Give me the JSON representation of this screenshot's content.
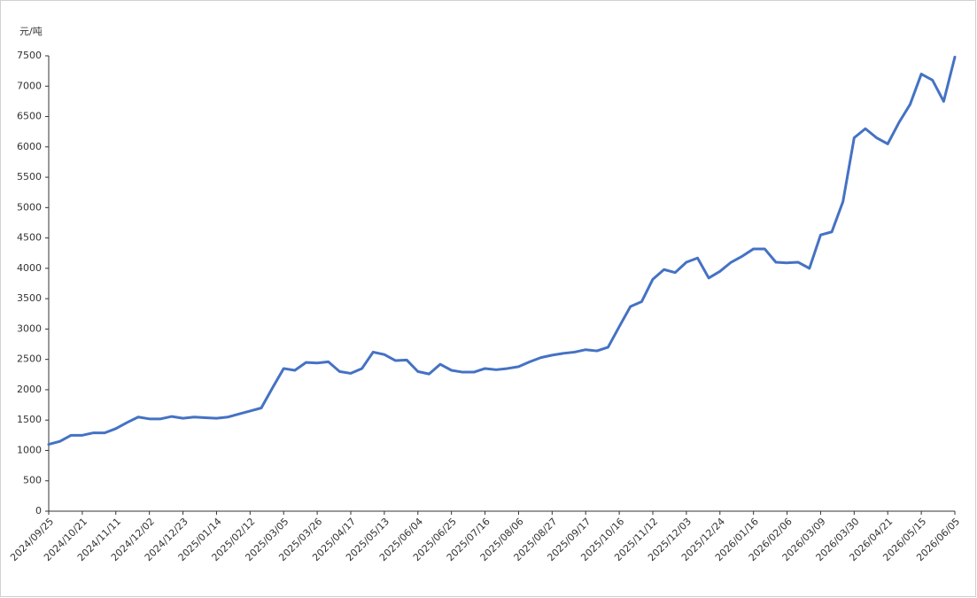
{
  "chart_data": {
    "type": "line",
    "y_axis_label": "元/吨",
    "color": "#4472c4",
    "categories": [
      "2024/09/25",
      null,
      null,
      "2024/10/21",
      null,
      null,
      "2024/11/11",
      null,
      null,
      "2024/12/02",
      null,
      null,
      "2024/12/23",
      null,
      null,
      "2025/01/14",
      null,
      null,
      "2025/02/12",
      null,
      null,
      "2025/03/05",
      null,
      null,
      "2025/03/26",
      null,
      null,
      "2025/04/17",
      null,
      null,
      "2025/05/13",
      null,
      null,
      "2025/06/04",
      null,
      null,
      "2025/06/25",
      null,
      null,
      "2025/07/16",
      null,
      null,
      "2025/08/06",
      null,
      null,
      "2025/08/27",
      null,
      null,
      "2025/09/17",
      null,
      null,
      "2025/10/16",
      null,
      null,
      "2025/11/12",
      null,
      null,
      "2025/12/03",
      null,
      null,
      "2025/12/24",
      null,
      null,
      "2026/01/16",
      null,
      null,
      "2026/02/06",
      null,
      null,
      "2026/03/09",
      null,
      null,
      "2026/03/30",
      null,
      null,
      "2026/04/21",
      null,
      null,
      "2026/05/15",
      null,
      null,
      "2026/06/05"
    ],
    "values": [
      1100,
      1150,
      1250,
      1250,
      1290,
      1290,
      1360,
      1460,
      1550,
      1520,
      1520,
      1560,
      1530,
      1550,
      1540,
      1530,
      1550,
      1600,
      1650,
      1700,
      2030,
      2350,
      2320,
      2450,
      2440,
      2460,
      2300,
      2270,
      2350,
      2620,
      2580,
      2480,
      2490,
      2300,
      2260,
      2420,
      2320,
      2290,
      2290,
      2350,
      2330,
      2350,
      2380,
      2460,
      2530,
      2570,
      2600,
      2620,
      2660,
      2640,
      2700,
      3040,
      3370,
      3450,
      3820,
      3980,
      3930,
      4100,
      4170,
      3840,
      3950,
      4100,
      4200,
      4320,
      4320,
      4100,
      4090,
      4100,
      4000,
      4550,
      4600,
      5100,
      6150,
      6300,
      6150,
      6050,
      6400,
      6700,
      7200,
      7100,
      6750,
      7480
    ],
    "ylim": [
      0,
      7500
    ],
    "yticks": [
      0,
      500,
      1000,
      1500,
      2000,
      2500,
      3000,
      3500,
      4000,
      4500,
      5000,
      5500,
      6000,
      6500,
      7000,
      7500
    ]
  }
}
